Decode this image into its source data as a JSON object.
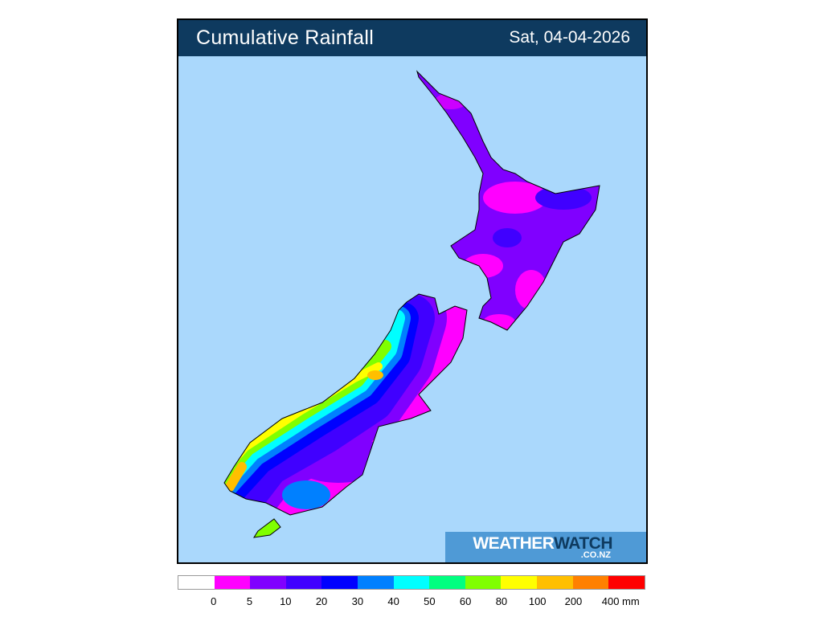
{
  "header": {
    "title": "Cumulative Rainfall",
    "date": "Sat, 04-04-2026"
  },
  "logo": {
    "word1": "WEATHER",
    "word2": "WATCH",
    "sub": ".CO.NZ"
  },
  "legend": {
    "colors": [
      "#ffffff",
      "#ff00ff",
      "#8000ff",
      "#4000ff",
      "#0000ff",
      "#0080ff",
      "#00ffff",
      "#00ff80",
      "#80ff00",
      "#ffff00",
      "#ffbf00",
      "#ff8000",
      "#ff0000"
    ],
    "labels": [
      "0",
      "5",
      "10",
      "20",
      "30",
      "40",
      "50",
      "60",
      "80",
      "100",
      "200",
      "400 mm"
    ]
  },
  "map": {
    "sea_color": "#aad8fc",
    "region": "New Zealand"
  }
}
